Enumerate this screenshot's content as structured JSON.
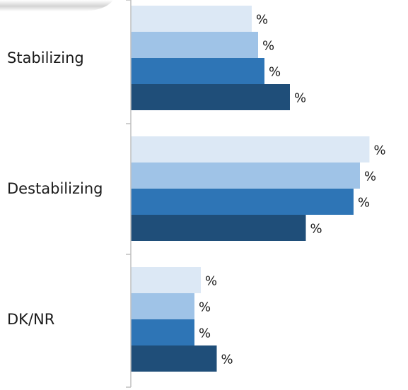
{
  "chart_data": {
    "type": "bar",
    "orientation": "horizontal",
    "categories": [
      "Stabilizing",
      "Destabilizing",
      "DK/NR"
    ],
    "series": [
      {
        "values": [
          38,
          75,
          22
        ],
        "color": "#dce8f5",
        "label_text": [
          "%",
          "%",
          "%"
        ]
      },
      {
        "values": [
          40,
          72,
          20
        ],
        "color": "#9fc3e7",
        "label_text": [
          "%",
          "%",
          "%"
        ]
      },
      {
        "values": [
          42,
          70,
          20
        ],
        "color": "#2e75b6",
        "label_text": [
          "%",
          "%",
          "%"
        ]
      },
      {
        "values": [
          50,
          55,
          27
        ],
        "color": "#1f4e79",
        "label_text": [
          "%",
          "%",
          "%"
        ]
      }
    ],
    "xlim": [
      0,
      80
    ],
    "grid": false,
    "legend": "none",
    "axis_color": "#bfbfbf"
  }
}
